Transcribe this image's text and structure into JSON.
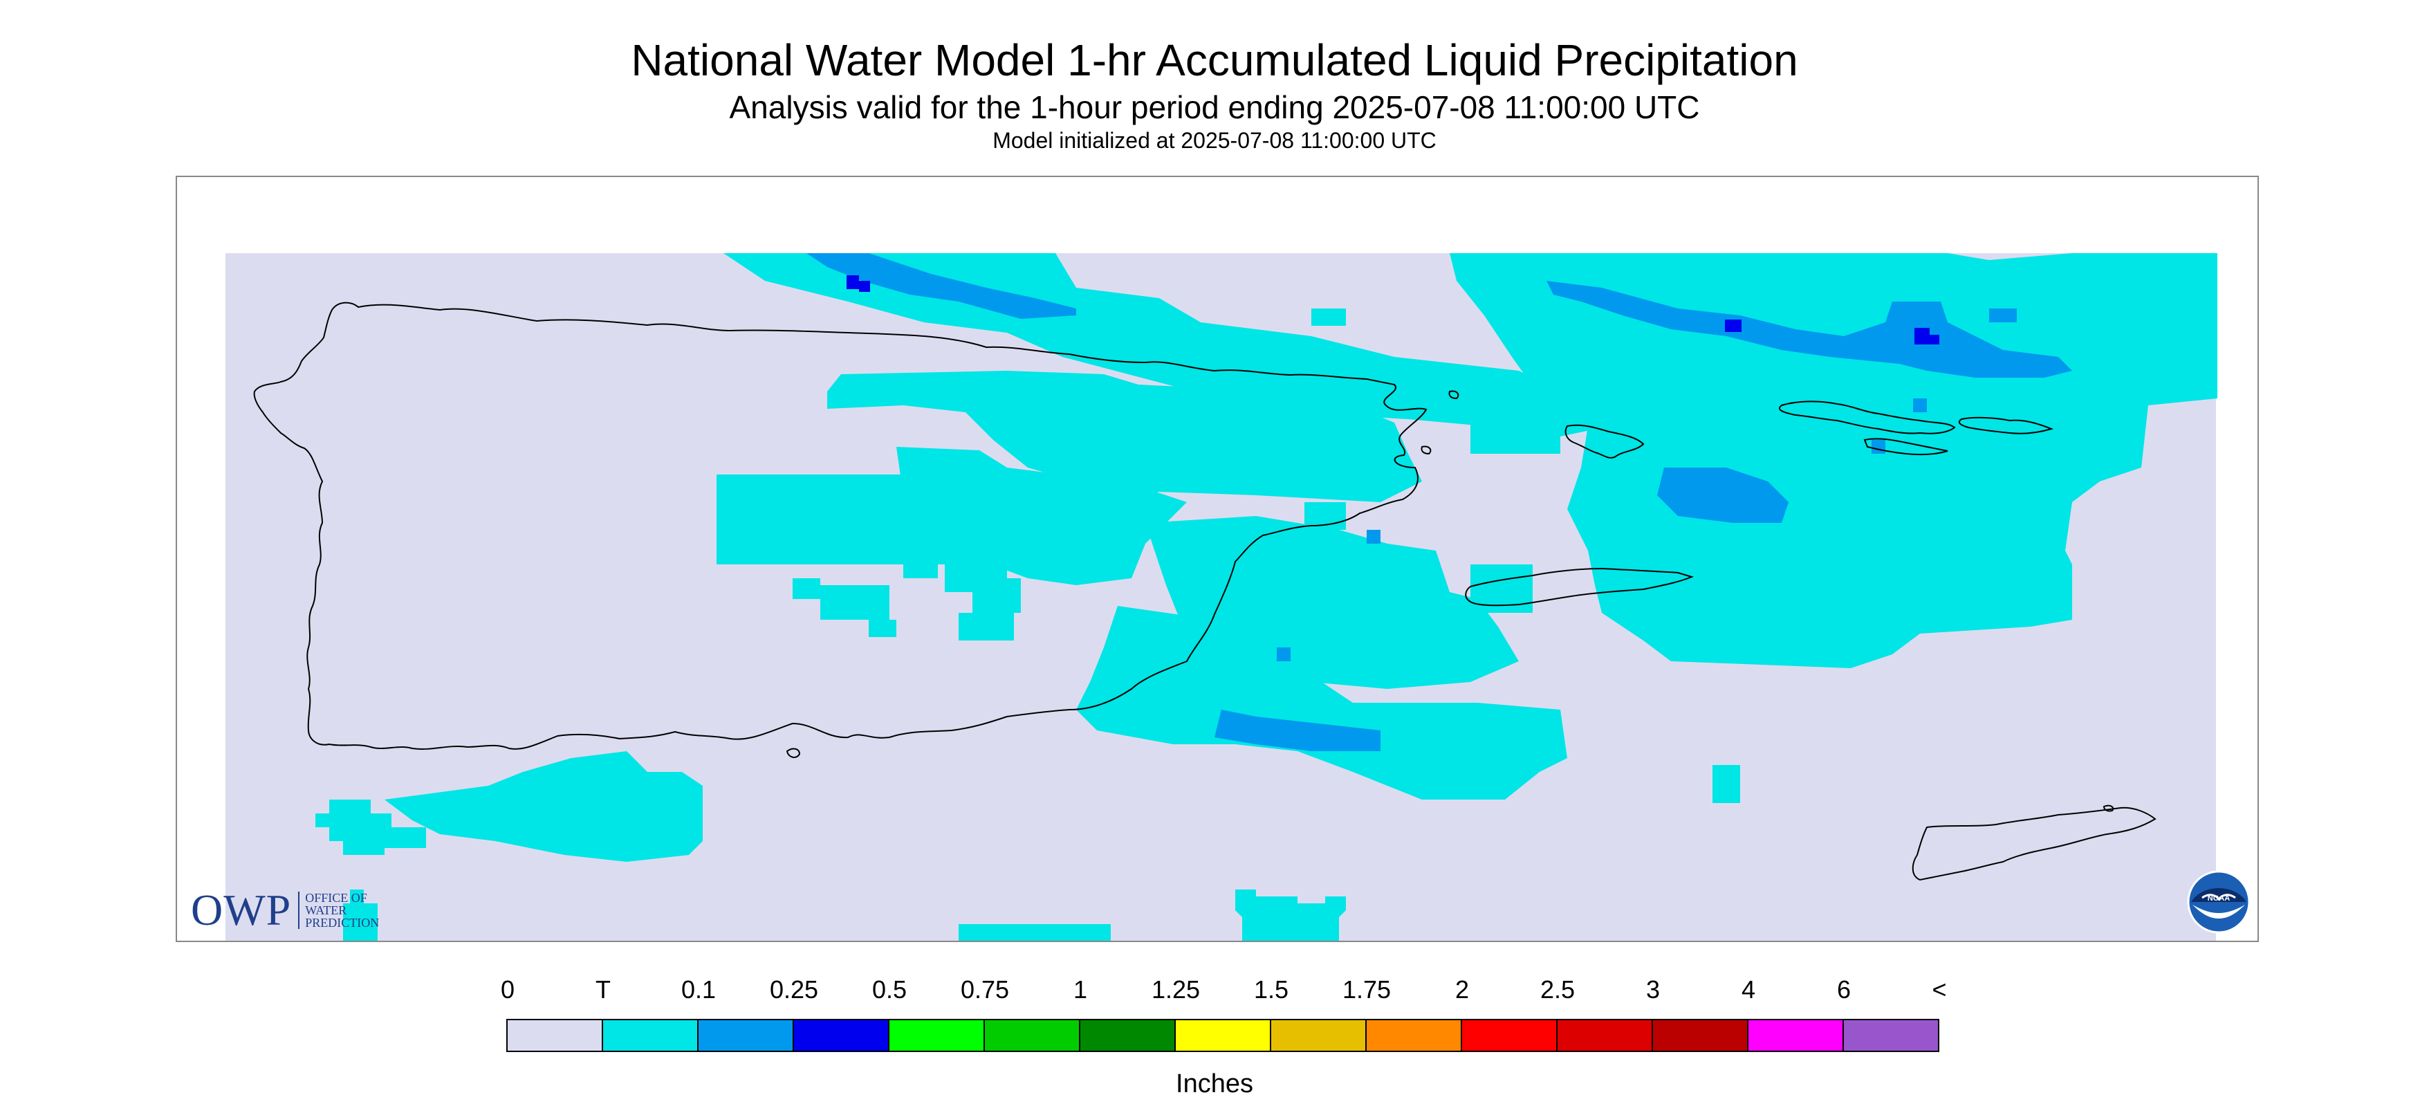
{
  "title": "National Water Model 1-hr Accumulated Liquid Precipitation",
  "subtitle": "Analysis valid for the 1-hour period ending 2025-07-08 11:00:00 UTC",
  "init_line": "Model initialized at 2025-07-08 11:00:00 UTC",
  "logos": {
    "owp_mark": "OWP",
    "owp_lines": [
      "OFFICE OF",
      "WATER",
      "PREDICTION"
    ],
    "noaa_text": "NOAA"
  },
  "legend": {
    "unit_label": "Inches",
    "tick_labels": [
      "0",
      "T",
      "0.1",
      "0.25",
      "0.5",
      "0.75",
      "1",
      "1.25",
      "1.5",
      "1.75",
      "2",
      "2.5",
      "3",
      "4",
      "6",
      "<"
    ],
    "colors": [
      "#dcdcf0",
      "#00e5e5",
      "#0099ee",
      "#0000ee",
      "#00ff00",
      "#00cc00",
      "#008800",
      "#ffff00",
      "#e6c000",
      "#ff8800",
      "#ff0000",
      "#dd0000",
      "#bb0000",
      "#ff00ff",
      "#9955cc"
    ]
  },
  "map": {
    "background_color": "#dcdcf0",
    "coast_color": "#000000"
  }
}
